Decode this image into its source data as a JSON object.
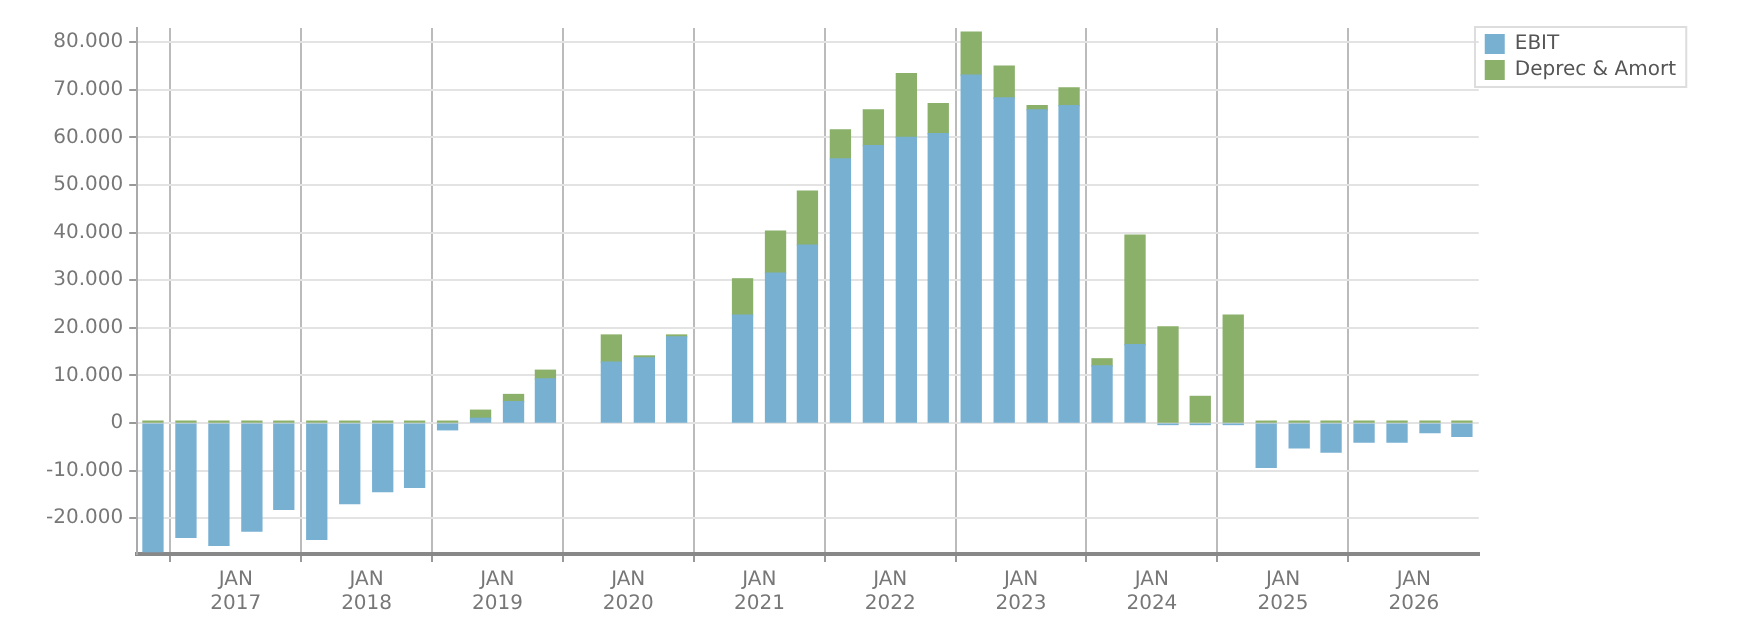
{
  "chart_data": {
    "type": "bar",
    "stacked": true,
    "x": [
      "2016-05-15",
      "2016-08-15",
      "2016-11-15",
      "2017-02-15",
      "2017-05-15",
      "2017-08-15",
      "2017-11-15",
      "2018-02-15",
      "2018-05-15",
      "2018-08-15",
      "2018-11-15",
      "2019-02-15",
      "2019-05-15",
      "2019-08-15",
      "2019-11-15",
      "2020-02-15",
      "2020-05-15",
      "2020-08-15",
      "2020-11-15",
      "2021-02-15",
      "2021-05-15",
      "2021-08-15",
      "2021-11-15",
      "2022-02-15",
      "2022-05-15",
      "2022-08-15",
      "2022-11-15",
      "2023-02-15",
      "2023-05-15",
      "2023-08-15",
      "2023-11-15",
      "2024-02-15",
      "2024-05-15",
      "2024-08-15",
      "2024-11-15",
      "2025-02-15",
      "2025-05-15",
      "2025-08-15",
      "2025-11-15",
      "2026-02-15",
      "2026-05-15"
    ],
    "series": [
      {
        "name": "EBIT",
        "color": "#78b0d2",
        "values": [
          -27000,
          -24000,
          -25700,
          -22700,
          -18100,
          -24400,
          -16900,
          -14400,
          -13500,
          -1400,
          1000,
          4500,
          9300,
          null,
          12800,
          13700,
          18100,
          null,
          22700,
          31500,
          37400,
          55500,
          58300,
          60000,
          60800,
          73100,
          68300,
          65800,
          66700,
          12000,
          16500,
          -300,
          -300,
          -300,
          -9300,
          -5200,
          -6100,
          -4000,
          -4000,
          -2000,
          -2800
        ]
      },
      {
        "name": "Deprec & Amort",
        "color": "#8ab06a",
        "values": [
          400,
          400,
          400,
          400,
          400,
          400,
          400,
          400,
          400,
          400,
          1700,
          1500,
          1800,
          null,
          5700,
          400,
          400,
          null,
          7600,
          8800,
          11300,
          6100,
          7500,
          13400,
          6300,
          9000,
          6700,
          900,
          3700,
          1500,
          23000,
          20200,
          5600,
          22700,
          400,
          400,
          400,
          400,
          400,
          400,
          400
        ]
      }
    ],
    "xlim": [
      "2016-04-01",
      "2026-07-01"
    ],
    "xticks": [
      {
        "value": "2017-01-01",
        "label": "JAN\n2017"
      },
      {
        "value": "2018-01-01",
        "label": "JAN\n2018"
      },
      {
        "value": "2019-01-01",
        "label": "JAN\n2019"
      },
      {
        "value": "2020-01-01",
        "label": "JAN\n2020"
      },
      {
        "value": "2021-01-01",
        "label": "JAN\n2021"
      },
      {
        "value": "2022-01-01",
        "label": "JAN\n2022"
      },
      {
        "value": "2023-01-01",
        "label": "JAN\n2023"
      },
      {
        "value": "2024-01-01",
        "label": "JAN\n2024"
      },
      {
        "value": "2025-01-01",
        "label": "JAN\n2025"
      },
      {
        "value": "2026-01-01",
        "label": "JAN\n2026"
      }
    ],
    "ylim": [
      -27500,
      83000
    ],
    "yticks": [
      {
        "value": -20000,
        "label": "-20.000"
      },
      {
        "value": -10000,
        "label": "-10.000"
      },
      {
        "value": 0,
        "label": "0"
      },
      {
        "value": 10000,
        "label": "10.000"
      },
      {
        "value": 20000,
        "label": "20.000"
      },
      {
        "value": 30000,
        "label": "30.000"
      },
      {
        "value": 40000,
        "label": "40.000"
      },
      {
        "value": 50000,
        "label": "50.000"
      },
      {
        "value": 60000,
        "label": "60.000"
      },
      {
        "value": 70000,
        "label": "70.000"
      },
      {
        "value": 80000,
        "label": "80.000"
      }
    ],
    "grid": true,
    "legend": "top right"
  }
}
